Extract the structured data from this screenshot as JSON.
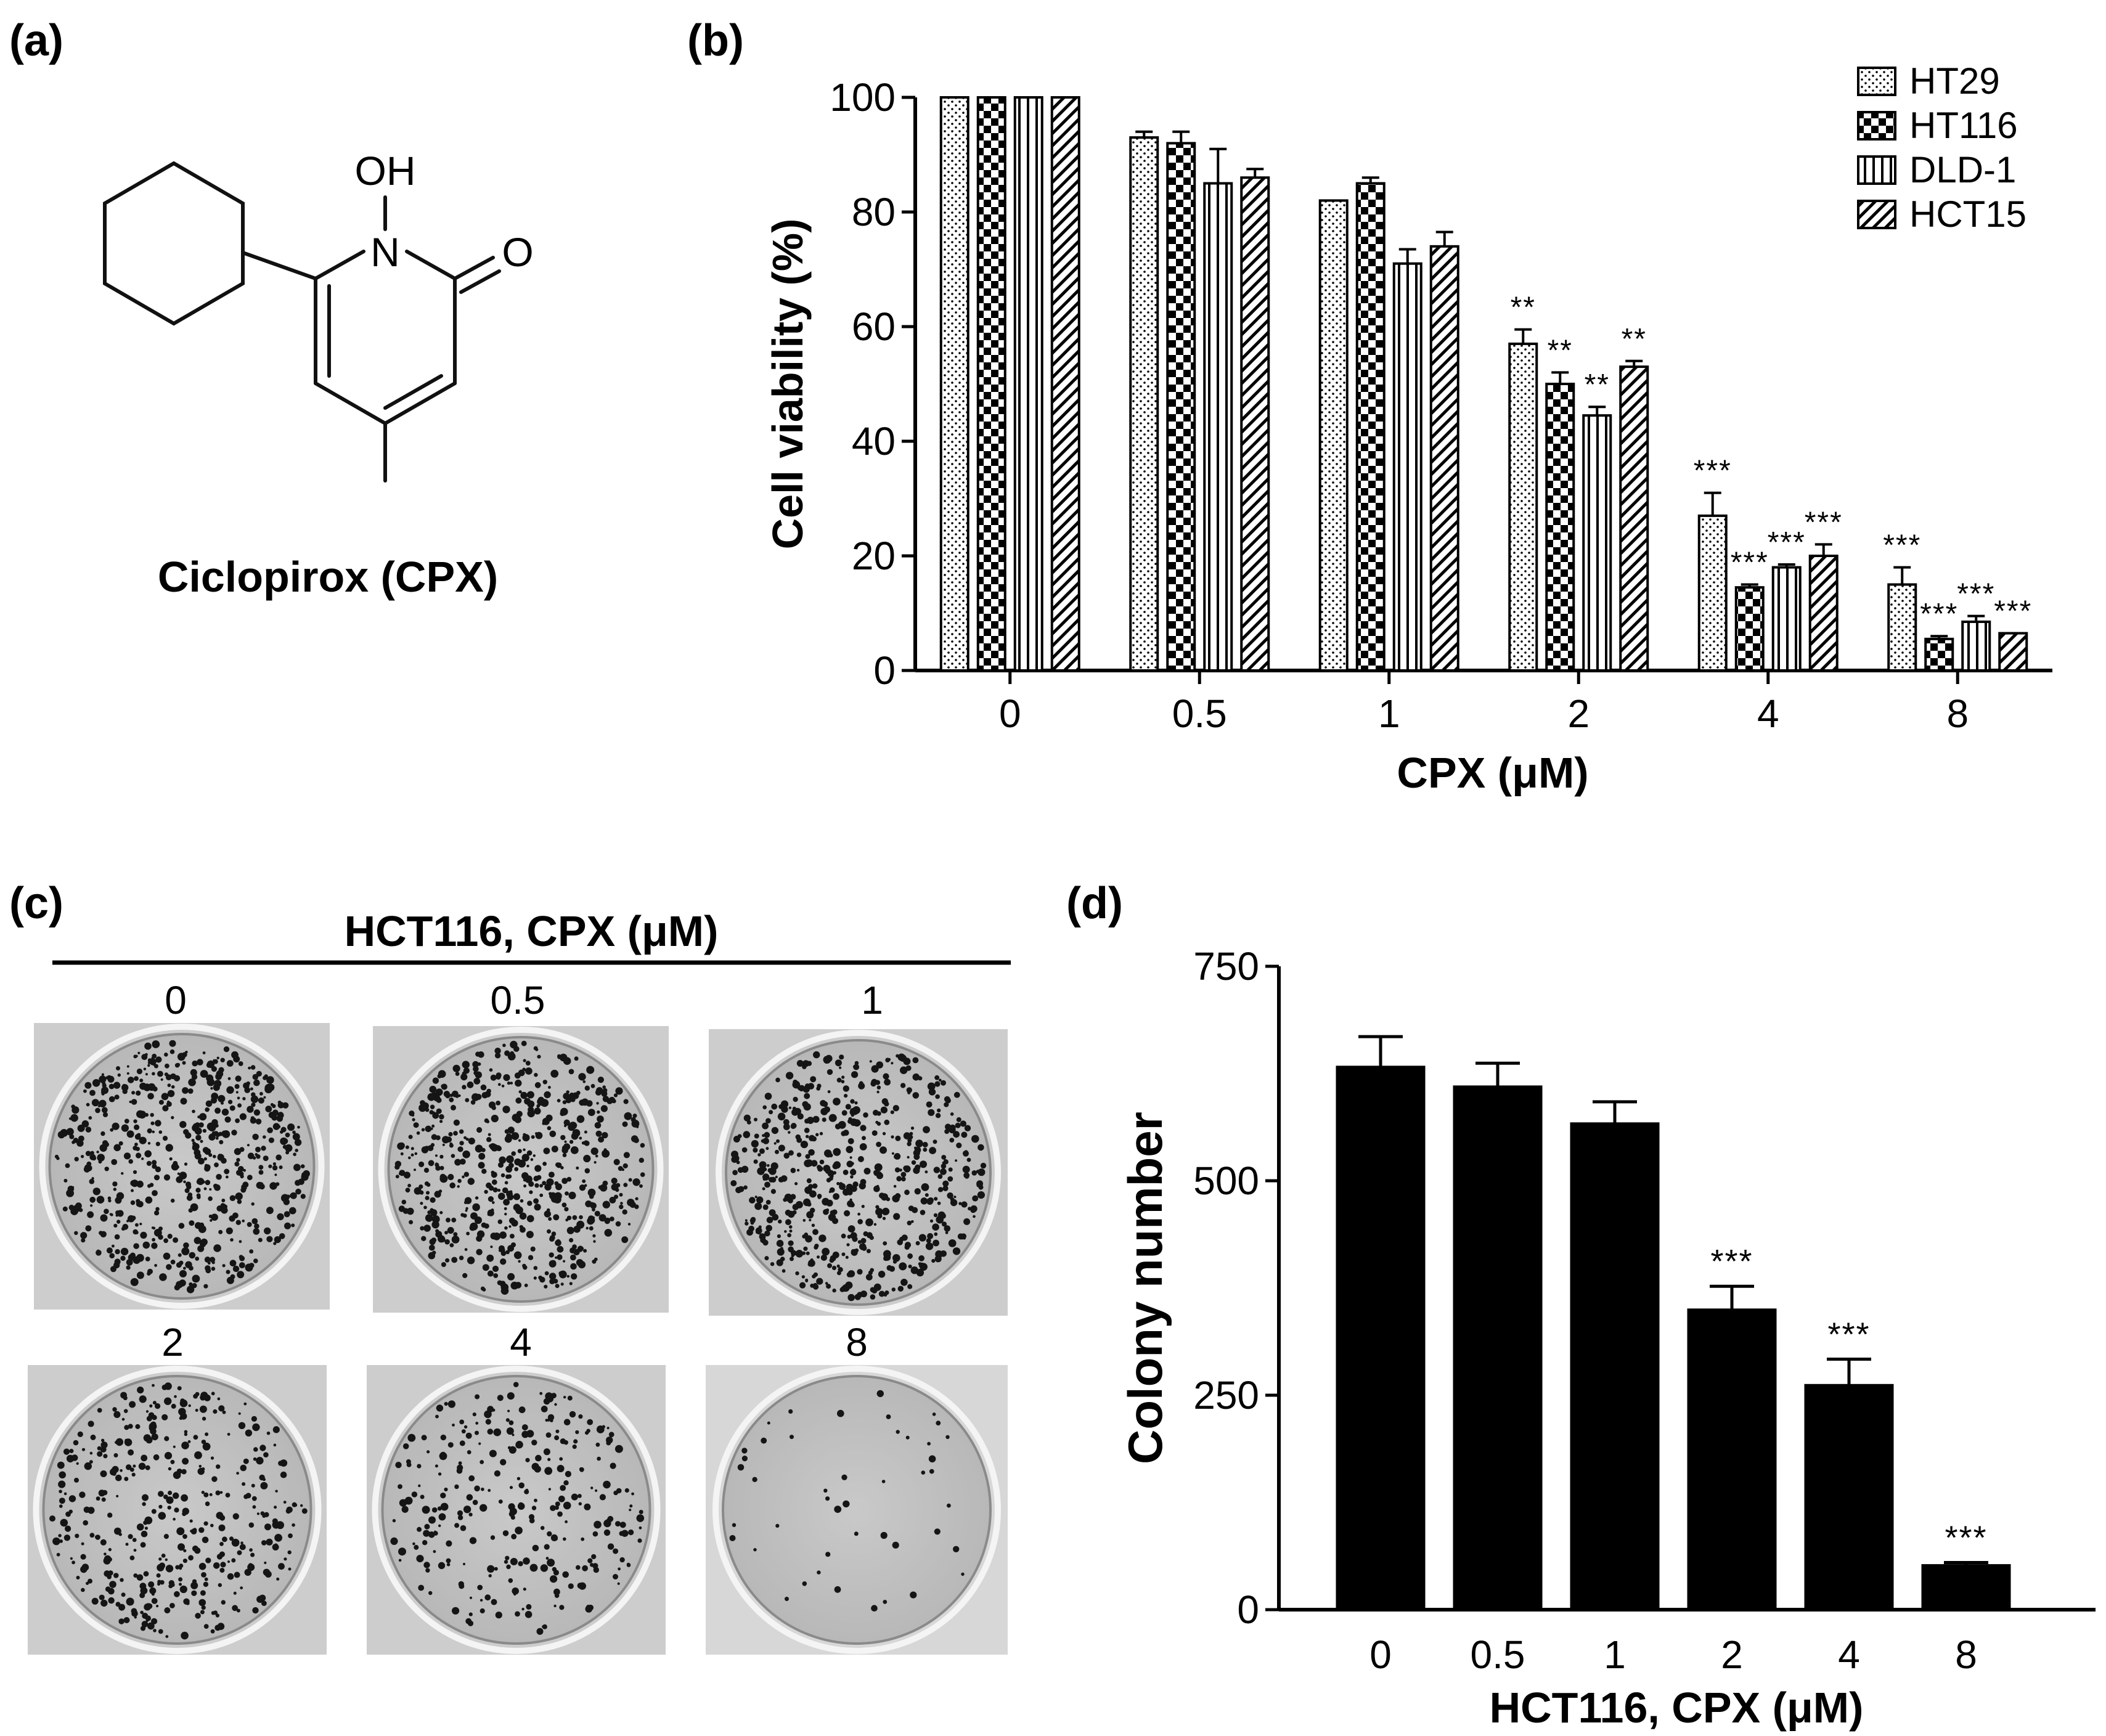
{
  "panels": {
    "a": {
      "label": "(a)",
      "compound_name": "Ciclopirox (CPX)",
      "atoms": {
        "oh": "OH",
        "n": "N",
        "o": "O"
      }
    },
    "b": {
      "label": "(b)"
    },
    "c": {
      "label": "(c)",
      "header": "HCT116, CPX (μM)",
      "dishes": [
        {
          "label": "0",
          "density": "high"
        },
        {
          "label": "0.5",
          "density": "high"
        },
        {
          "label": "1",
          "density": "high"
        },
        {
          "label": "2",
          "density": "medium"
        },
        {
          "label": "4",
          "density": "medium-low"
        },
        {
          "label": "8",
          "density": "sparse"
        }
      ]
    },
    "d": {
      "label": "(d)"
    }
  },
  "chart_data": [
    {
      "type": "bar",
      "panel": "b",
      "title": "",
      "xlabel": "CPX (μM)",
      "ylabel": "Cell viability (%)",
      "categories": [
        "0",
        "0.5",
        "1",
        "2",
        "4",
        "8"
      ],
      "ylim": [
        0,
        100
      ],
      "yticks": [
        "0",
        "20",
        "40",
        "60",
        "80",
        "100"
      ],
      "legend_position": "top-right",
      "series": [
        {
          "name": "HT29",
          "pattern": "dots",
          "values": [
            100,
            93,
            82,
            57,
            27,
            15
          ],
          "errors": [
            0,
            1,
            0,
            2.5,
            4,
            3
          ],
          "significance": [
            "",
            "",
            "",
            "**",
            "***",
            "***"
          ]
        },
        {
          "name": "HT116",
          "pattern": "checker",
          "values": [
            100,
            92,
            85,
            50,
            14.5,
            5.5
          ],
          "errors": [
            0,
            2,
            1,
            2,
            0.5,
            0.5
          ],
          "significance": [
            "",
            "",
            "",
            "**",
            "***",
            "***"
          ]
        },
        {
          "name": "DLD-1",
          "pattern": "vertical-lines",
          "values": [
            100,
            85,
            71,
            44.5,
            18,
            8.5
          ],
          "errors": [
            0,
            6,
            2.5,
            1.5,
            0.5,
            1
          ],
          "significance": [
            "",
            "",
            "",
            "**",
            "***",
            "***"
          ]
        },
        {
          "name": "HCT15",
          "pattern": "diagonal-lines",
          "values": [
            100,
            86,
            74,
            53,
            20,
            6.5
          ],
          "errors": [
            0,
            1.5,
            2.5,
            1,
            2,
            0
          ],
          "significance": [
            "",
            "",
            "",
            "**",
            "***",
            "***"
          ]
        }
      ]
    },
    {
      "type": "bar",
      "panel": "d",
      "title": "",
      "xlabel": "HCT116, CPX (μM)",
      "ylabel": "Colony  number",
      "categories": [
        "0",
        "0.5",
        "1",
        "2",
        "4",
        "8"
      ],
      "ylim": [
        0,
        750
      ],
      "yticks": [
        "0",
        "250",
        "500",
        "750"
      ],
      "values": [
        633,
        610,
        567,
        350,
        262,
        52
      ],
      "errors": [
        35,
        27,
        25,
        27,
        30,
        3
      ],
      "significance": [
        "",
        "",
        "",
        "***",
        "***",
        "***"
      ]
    }
  ]
}
